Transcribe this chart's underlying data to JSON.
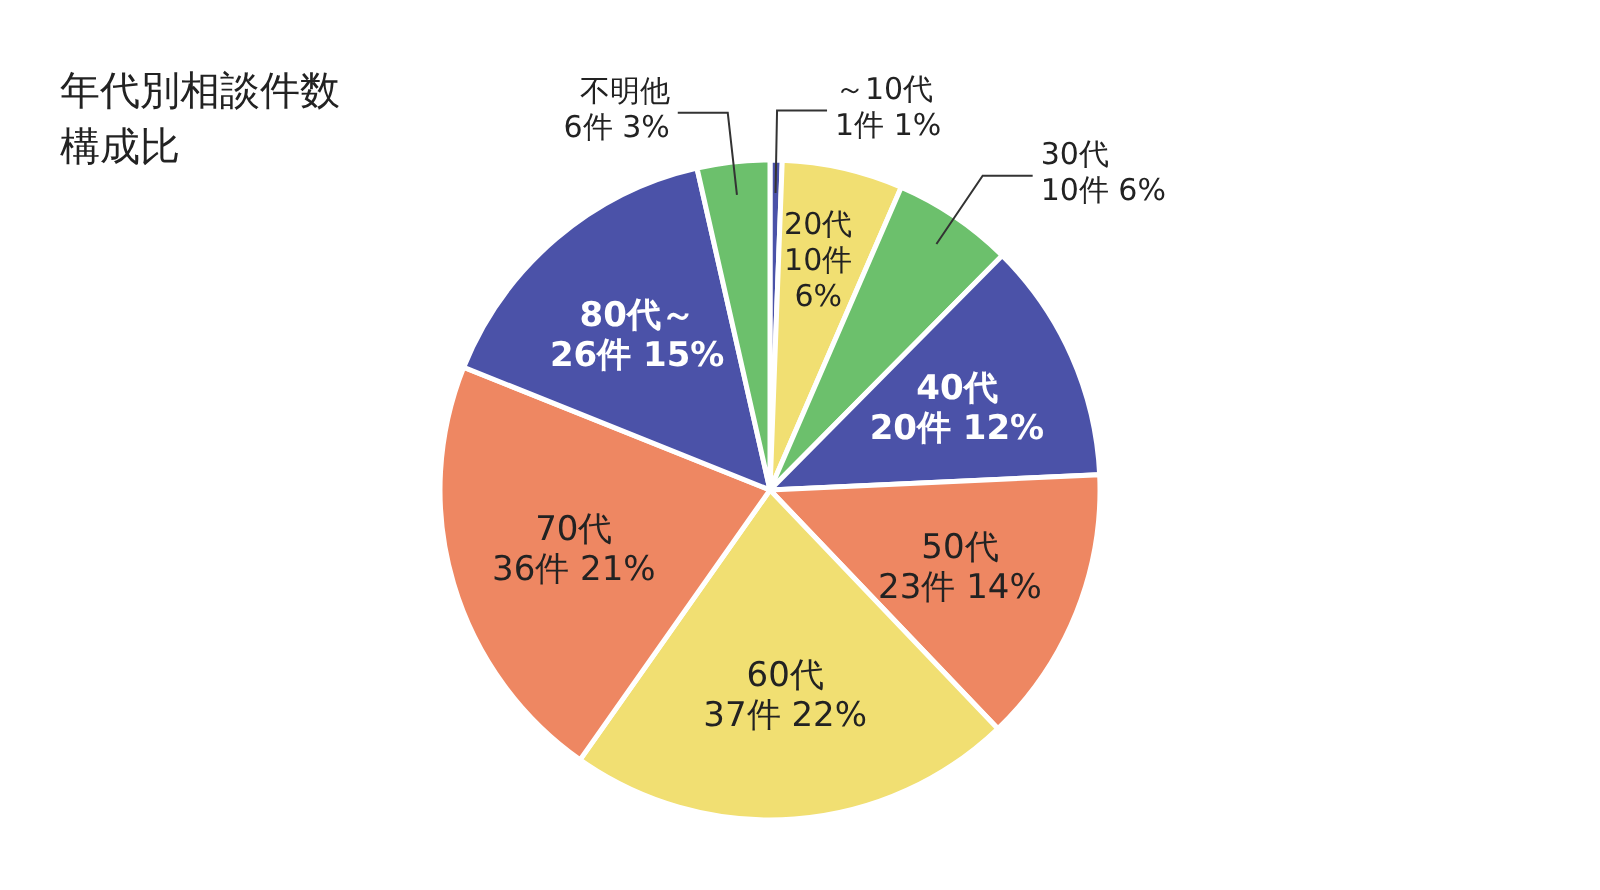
{
  "chart_data": {
    "type": "pie",
    "title": "年代別相談件数",
    "subtitle": "構成比",
    "categories": [
      "～10代",
      "20代",
      "30代",
      "40代",
      "50代",
      "60代",
      "70代",
      "80代～",
      "不明他"
    ],
    "values": [
      1,
      10,
      10,
      20,
      23,
      37,
      36,
      26,
      6
    ],
    "value_labels": [
      "1件 1%",
      "10件 6%",
      "10件 6%",
      "20件 12%",
      "23件 14%",
      "37件 22%",
      "36件 21%",
      "26件 15%",
      "6件 3%"
    ],
    "colors": [
      "#4b52a8",
      "#f1df72",
      "#6cc06c",
      "#4b52a8",
      "#ee8762",
      "#f1df72",
      "#ee8762",
      "#4b52a8",
      "#6cc06c"
    ]
  }
}
